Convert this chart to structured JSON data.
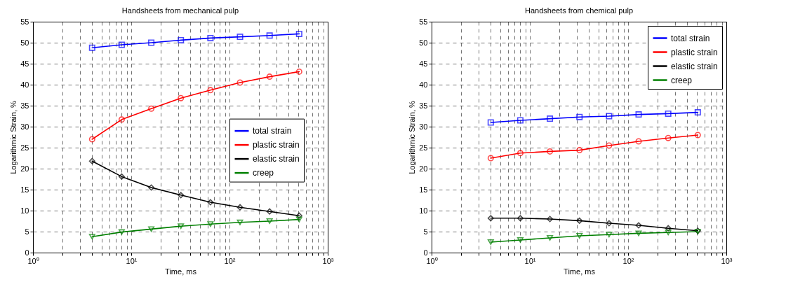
{
  "chart_data": [
    {
      "type": "line",
      "title": "Handsheets from mechanical pulp",
      "xlabel": "Time, ms",
      "ylabel": "Logarithmic Strain, %",
      "log": "x",
      "grid": true,
      "legend": "right",
      "xlim": [
        1,
        1000
      ],
      "xticks": [
        {
          "value": 1,
          "label": "10⁰"
        },
        {
          "value": 2,
          "label": null
        },
        {
          "value": 3,
          "label": null
        },
        {
          "value": 4,
          "label": null
        },
        {
          "value": 5,
          "label": null
        },
        {
          "value": 6,
          "label": null
        },
        {
          "value": 7,
          "label": null
        },
        {
          "value": 8,
          "label": null
        },
        {
          "value": 9,
          "label": null
        },
        {
          "value": 10,
          "label": "10¹"
        },
        {
          "value": 20,
          "label": null
        },
        {
          "value": 30,
          "label": null
        },
        {
          "value": 40,
          "label": null
        },
        {
          "value": 50,
          "label": null
        },
        {
          "value": 60,
          "label": null
        },
        {
          "value": 70,
          "label": null
        },
        {
          "value": 80,
          "label": null
        },
        {
          "value": 90,
          "label": null
        },
        {
          "value": 100,
          "label": "10²"
        },
        {
          "value": 200,
          "label": null
        },
        {
          "value": 300,
          "label": null
        },
        {
          "value": 400,
          "label": null
        },
        {
          "value": 500,
          "label": null
        },
        {
          "value": 600,
          "label": null
        },
        {
          "value": 700,
          "label": null
        },
        {
          "value": 800,
          "label": null
        },
        {
          "value": 900,
          "label": null
        },
        {
          "value": 1000,
          "label": "10³"
        }
      ],
      "ylim": [
        0,
        55
      ],
      "yticks": [
        0,
        5,
        10,
        15,
        20,
        25,
        30,
        35,
        40,
        45,
        50,
        55
      ],
      "x": [
        4,
        8,
        16,
        32,
        64,
        128,
        256,
        512
      ],
      "series": [
        {
          "name": "total strain",
          "color": "#0000ff",
          "marker": "square",
          "values": [
            48.8,
            49.5,
            50.0,
            50.6,
            51.1,
            51.4,
            51.7,
            52.1
          ]
        },
        {
          "name": "plastic strain",
          "color": "#ff0000",
          "marker": "circle",
          "values": [
            27.0,
            31.7,
            34.3,
            36.8,
            38.7,
            40.5,
            41.9,
            43.1
          ]
        },
        {
          "name": "elastic strain",
          "color": "#000000",
          "marker": "diamond",
          "values": [
            21.8,
            18.1,
            15.5,
            13.7,
            12.0,
            10.8,
            9.8,
            8.8
          ]
        },
        {
          "name": "creep",
          "color": "#008000",
          "marker": "triangle",
          "values": [
            3.8,
            4.9,
            5.6,
            6.3,
            6.8,
            7.2,
            7.5,
            7.9
          ]
        }
      ]
    },
    {
      "type": "line",
      "title": "Handsheets from chemical pulp",
      "xlabel": "Time, ms",
      "ylabel": "Logarithmic Strain, %",
      "log": "x",
      "grid": true,
      "legend": "top right",
      "xlim": [
        1,
        1000
      ],
      "xticks": [
        {
          "value": 1,
          "label": "10⁰"
        },
        {
          "value": 2,
          "label": null
        },
        {
          "value": 3,
          "label": null
        },
        {
          "value": 4,
          "label": null
        },
        {
          "value": 5,
          "label": null
        },
        {
          "value": 6,
          "label": null
        },
        {
          "value": 7,
          "label": null
        },
        {
          "value": 8,
          "label": null
        },
        {
          "value": 9,
          "label": null
        },
        {
          "value": 10,
          "label": "10¹"
        },
        {
          "value": 20,
          "label": null
        },
        {
          "value": 30,
          "label": null
        },
        {
          "value": 40,
          "label": null
        },
        {
          "value": 50,
          "label": null
        },
        {
          "value": 60,
          "label": null
        },
        {
          "value": 70,
          "label": null
        },
        {
          "value": 80,
          "label": null
        },
        {
          "value": 90,
          "label": null
        },
        {
          "value": 100,
          "label": "10²"
        },
        {
          "value": 200,
          "label": null
        },
        {
          "value": 300,
          "label": null
        },
        {
          "value": 400,
          "label": null
        },
        {
          "value": 500,
          "label": null
        },
        {
          "value": 600,
          "label": null
        },
        {
          "value": 700,
          "label": null
        },
        {
          "value": 800,
          "label": null
        },
        {
          "value": 900,
          "label": null
        },
        {
          "value": 1000,
          "label": "10³"
        }
      ],
      "ylim": [
        0,
        55
      ],
      "yticks": [
        0,
        5,
        10,
        15,
        20,
        25,
        30,
        35,
        40,
        45,
        50,
        55
      ],
      "x": [
        4,
        8,
        16,
        32,
        64,
        128,
        256,
        512
      ],
      "series": [
        {
          "name": "total strain",
          "color": "#0000ff",
          "marker": "square",
          "values": [
            31.0,
            31.5,
            31.9,
            32.3,
            32.5,
            32.9,
            33.1,
            33.4
          ]
        },
        {
          "name": "plastic strain",
          "color": "#ff0000",
          "marker": "circle",
          "values": [
            22.5,
            23.7,
            24.1,
            24.4,
            25.5,
            26.5,
            27.3,
            28.0
          ]
        },
        {
          "name": "elastic strain",
          "color": "#000000",
          "marker": "diamond",
          "values": [
            8.2,
            8.2,
            8.0,
            7.6,
            7.0,
            6.5,
            5.8,
            5.2
          ]
        },
        {
          "name": "creep",
          "color": "#008000",
          "marker": "triangle",
          "values": [
            2.5,
            3.0,
            3.5,
            4.0,
            4.3,
            4.6,
            4.8,
            5.0
          ]
        }
      ]
    }
  ]
}
